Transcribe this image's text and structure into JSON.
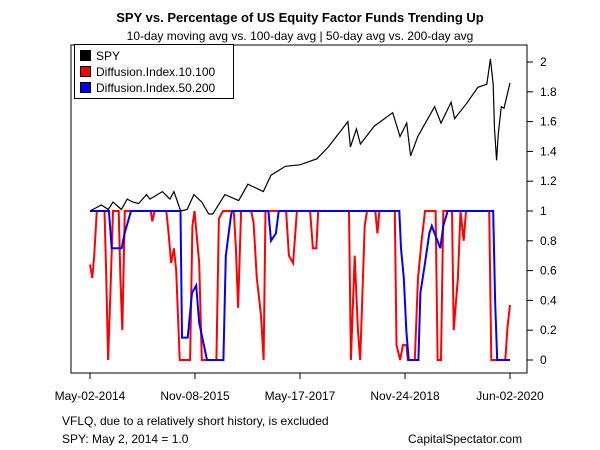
{
  "title": "SPY vs. Percentage of US Equity Factor Funds Trending Up",
  "subtitle": "10-day moving avg vs. 100-day avg | 50-day avg vs. 200-day avg",
  "footnote_1": "VFLQ, due to a  relatively short history, is excluded",
  "footnote_2": "SPY: May 2, 2014 = 1.0",
  "credit": "CapitalSpectator.com",
  "chart_data": {
    "type": "line",
    "title": "SPY vs. Percentage of US Equity Factor Funds Trending Up",
    "subtitle": "10-day moving avg vs. 100-day avg | 50-day avg vs. 200-day avg",
    "xlabel": "",
    "ylabel": "",
    "x_ticks": [
      "May-02-2014",
      "Nov-08-2015",
      "May-17-2017",
      "Nov-24-2018",
      "Jun-02-2020"
    ],
    "xlim": [
      "2014-05-02",
      "2020-06-02"
    ],
    "y_ticks": [
      0,
      0.2,
      0.4,
      0.6,
      0.8,
      1,
      1.2,
      1.4,
      1.6,
      1.8,
      2
    ],
    "ylim": [
      0,
      2.05
    ],
    "y_axis_side": "right",
    "grid": false,
    "legend_position": "top-left",
    "series": [
      {
        "name": "SPY",
        "color": "#000000",
        "points": [
          [
            "2014-05-02",
            1.0
          ],
          [
            "2014-06-01",
            1.02
          ],
          [
            "2014-07-01",
            1.04
          ],
          [
            "2014-08-07",
            1.01
          ],
          [
            "2014-09-01",
            1.06
          ],
          [
            "2014-10-15",
            1.01
          ],
          [
            "2014-11-15",
            1.08
          ],
          [
            "2014-12-15",
            1.06
          ],
          [
            "2015-01-15",
            1.05
          ],
          [
            "2015-02-25",
            1.11
          ],
          [
            "2015-03-15",
            1.08
          ],
          [
            "2015-05-20",
            1.13
          ],
          [
            "2015-06-29",
            1.08
          ],
          [
            "2015-07-20",
            1.13
          ],
          [
            "2015-08-25",
            1.0
          ],
          [
            "2015-09-28",
            1.01
          ],
          [
            "2015-11-03",
            1.11
          ],
          [
            "2015-12-15",
            1.06
          ],
          [
            "2016-01-20",
            0.98
          ],
          [
            "2016-02-11",
            0.98
          ],
          [
            "2016-04-15",
            1.11
          ],
          [
            "2016-06-27",
            1.07
          ],
          [
            "2016-08-15",
            1.18
          ],
          [
            "2016-11-04",
            1.13
          ],
          [
            "2016-12-15",
            1.24
          ],
          [
            "2017-03-01",
            1.3
          ],
          [
            "2017-05-17",
            1.31
          ],
          [
            "2017-08-15",
            1.35
          ],
          [
            "2017-10-15",
            1.43
          ],
          [
            "2018-01-26",
            1.6
          ],
          [
            "2018-02-08",
            1.43
          ],
          [
            "2018-03-12",
            1.55
          ],
          [
            "2018-04-02",
            1.45
          ],
          [
            "2018-06-15",
            1.57
          ],
          [
            "2018-09-20",
            1.66
          ],
          [
            "2018-10-29",
            1.5
          ],
          [
            "2018-12-03",
            1.59
          ],
          [
            "2018-12-24",
            1.37
          ],
          [
            "2019-01-31",
            1.5
          ],
          [
            "2019-04-30",
            1.7
          ],
          [
            "2019-06-03",
            1.59
          ],
          [
            "2019-07-26",
            1.73
          ],
          [
            "2019-08-14",
            1.62
          ],
          [
            "2019-10-15",
            1.72
          ],
          [
            "2019-12-15",
            1.83
          ],
          [
            "2020-01-31",
            1.85
          ],
          [
            "2020-02-19",
            2.02
          ],
          [
            "2020-03-05",
            1.85
          ],
          [
            "2020-03-12",
            1.55
          ],
          [
            "2020-03-23",
            1.34
          ],
          [
            "2020-04-01",
            1.52
          ],
          [
            "2020-04-17",
            1.7
          ],
          [
            "2020-05-01",
            1.69
          ],
          [
            "2020-05-18",
            1.78
          ],
          [
            "2020-06-02",
            1.86
          ]
        ]
      },
      {
        "name": "Diffusion.Index.10.100",
        "color": "#ff0000",
        "points": [
          [
            "2014-05-02",
            0.64
          ],
          [
            "2014-05-14",
            0.55
          ],
          [
            "2014-05-24",
            0.7
          ],
          [
            "2014-06-07",
            1.0
          ],
          [
            "2014-07-18",
            1.0
          ],
          [
            "2014-07-26",
            0.6
          ],
          [
            "2014-08-06",
            0.0
          ],
          [
            "2014-08-18",
            0.45
          ],
          [
            "2014-09-01",
            1.0
          ],
          [
            "2014-10-01",
            1.0
          ],
          [
            "2014-10-10",
            0.55
          ],
          [
            "2014-10-20",
            0.2
          ],
          [
            "2014-11-02",
            1.0
          ],
          [
            "2015-03-20",
            1.0
          ],
          [
            "2015-03-28",
            0.93
          ],
          [
            "2015-04-09",
            1.0
          ],
          [
            "2015-06-10",
            1.0
          ],
          [
            "2015-06-22",
            0.85
          ],
          [
            "2015-07-05",
            0.65
          ],
          [
            "2015-07-20",
            0.75
          ],
          [
            "2015-08-01",
            0.6
          ],
          [
            "2015-08-20",
            0.0
          ],
          [
            "2015-10-14",
            0.0
          ],
          [
            "2015-10-26",
            0.9
          ],
          [
            "2015-11-06",
            1.0
          ],
          [
            "2015-12-01",
            0.65
          ],
          [
            "2015-12-15",
            0.0
          ],
          [
            "2016-03-01",
            0.0
          ],
          [
            "2016-03-14",
            0.95
          ],
          [
            "2016-04-05",
            1.0
          ],
          [
            "2016-06-01",
            1.0
          ],
          [
            "2016-06-12",
            0.75
          ],
          [
            "2016-06-24",
            0.35
          ],
          [
            "2016-07-10",
            1.0
          ],
          [
            "2016-09-01",
            1.0
          ],
          [
            "2016-09-14",
            0.92
          ],
          [
            "2016-10-01",
            0.55
          ],
          [
            "2016-10-23",
            0.3
          ],
          [
            "2016-11-06",
            0.0
          ],
          [
            "2016-11-16",
            1.0
          ],
          [
            "2017-03-05",
            1.0
          ],
          [
            "2017-03-20",
            0.7
          ],
          [
            "2017-04-11",
            0.65
          ],
          [
            "2017-05-01",
            1.0
          ],
          [
            "2017-07-10",
            1.0
          ],
          [
            "2017-07-25",
            0.75
          ],
          [
            "2017-08-12",
            0.75
          ],
          [
            "2017-08-22",
            1.0
          ],
          [
            "2018-02-01",
            1.0
          ],
          [
            "2018-02-11",
            0.0
          ],
          [
            "2018-03-03",
            0.7
          ],
          [
            "2018-03-20",
            0.2
          ],
          [
            "2018-04-01",
            0.0
          ],
          [
            "2018-04-25",
            0.9
          ],
          [
            "2018-05-07",
            1.0
          ],
          [
            "2018-06-20",
            1.0
          ],
          [
            "2018-07-01",
            0.85
          ],
          [
            "2018-07-12",
            1.0
          ],
          [
            "2018-10-01",
            1.0
          ],
          [
            "2018-10-10",
            0.1
          ],
          [
            "2018-10-30",
            0.0
          ],
          [
            "2018-11-13",
            0.1
          ],
          [
            "2018-12-02",
            0.1
          ],
          [
            "2018-12-09",
            0.0
          ],
          [
            "2019-01-15",
            0.0
          ],
          [
            "2019-02-01",
            0.55
          ],
          [
            "2019-02-20",
            0.8
          ],
          [
            "2019-03-10",
            1.0
          ],
          [
            "2019-05-05",
            1.0
          ],
          [
            "2019-05-16",
            0.0
          ],
          [
            "2019-06-03",
            0.0
          ],
          [
            "2019-06-15",
            1.0
          ],
          [
            "2019-07-31",
            1.0
          ],
          [
            "2019-08-09",
            0.2
          ],
          [
            "2019-08-31",
            0.55
          ],
          [
            "2019-09-14",
            1.0
          ],
          [
            "2019-10-01",
            0.8
          ],
          [
            "2019-10-13",
            1.0
          ],
          [
            "2020-02-13",
            1.0
          ],
          [
            "2020-02-24",
            0.0
          ],
          [
            "2020-05-08",
            0.0
          ],
          [
            "2020-05-20",
            0.22
          ],
          [
            "2020-06-02",
            0.37
          ]
        ]
      },
      {
        "name": "Diffusion.Index.50.200",
        "color": "#0000ff",
        "points": [
          [
            "2014-05-02",
            1.0
          ],
          [
            "2014-08-10",
            1.0
          ],
          [
            "2014-08-25",
            0.75
          ],
          [
            "2014-10-16",
            0.75
          ],
          [
            "2014-11-01",
            0.85
          ],
          [
            "2014-12-05",
            1.0
          ],
          [
            "2015-08-24",
            1.0
          ],
          [
            "2015-09-01",
            0.15
          ],
          [
            "2015-10-01",
            0.15
          ],
          [
            "2015-10-24",
            0.45
          ],
          [
            "2015-11-15",
            0.5
          ],
          [
            "2015-12-01",
            0.25
          ],
          [
            "2016-01-11",
            0.0
          ],
          [
            "2016-04-07",
            0.0
          ],
          [
            "2016-04-20",
            0.7
          ],
          [
            "2016-05-15",
            0.95
          ],
          [
            "2016-05-22",
            1.0
          ],
          [
            "2016-12-01",
            1.0
          ],
          [
            "2016-12-15",
            0.8
          ],
          [
            "2017-01-10",
            0.85
          ],
          [
            "2017-01-25",
            1.0
          ],
          [
            "2018-10-25",
            1.0
          ],
          [
            "2018-11-03",
            0.75
          ],
          [
            "2018-11-18",
            0.55
          ],
          [
            "2018-12-01",
            0.2
          ],
          [
            "2018-12-14",
            0.0
          ],
          [
            "2019-02-03",
            0.0
          ],
          [
            "2019-02-14",
            0.45
          ],
          [
            "2019-03-10",
            0.65
          ],
          [
            "2019-04-02",
            0.85
          ],
          [
            "2019-04-15",
            0.9
          ],
          [
            "2019-05-30",
            0.75
          ],
          [
            "2019-06-15",
            0.9
          ],
          [
            "2019-07-08",
            1.0
          ],
          [
            "2020-03-05",
            1.0
          ],
          [
            "2020-03-15",
            0.4
          ],
          [
            "2020-03-26",
            0.0
          ],
          [
            "2020-06-02",
            0.0
          ]
        ]
      }
    ]
  }
}
